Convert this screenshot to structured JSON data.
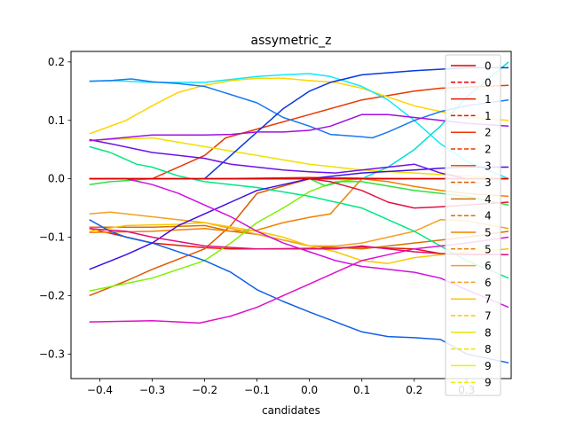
{
  "chart_data": {
    "type": "line",
    "title": "assymetric_z",
    "xlabel": "candidates",
    "ylabel": "",
    "xlim": [
      -0.455,
      0.385
    ],
    "ylim": [
      -0.342,
      0.218
    ],
    "xticks": [
      -0.4,
      -0.3,
      -0.2,
      -0.1,
      0.0,
      0.1,
      0.2,
      0.3
    ],
    "xtick_labels": [
      "−0.4",
      "−0.3",
      "−0.2",
      "−0.1",
      "0.0",
      "0.1",
      "0.2",
      "0.3"
    ],
    "yticks": [
      -0.3,
      -0.2,
      -0.1,
      0.0,
      0.1,
      0.2
    ],
    "ytick_labels": [
      "−0.3",
      "−0.2",
      "−0.1",
      "0.0",
      "0.1",
      "0.2"
    ],
    "grid": false,
    "legend_position": "right, extends below the plot",
    "legend": [
      {
        "label": "0",
        "color": "#e00000",
        "dash": "solid"
      },
      {
        "label": "0",
        "color": "#e00000",
        "dash": "dashed"
      },
      {
        "label": "1",
        "color": "#e81800",
        "dash": "solid"
      },
      {
        "label": "1",
        "color": "#e81800",
        "dash": "dashed"
      },
      {
        "label": "2",
        "color": "#ea3800",
        "dash": "solid"
      },
      {
        "label": "2",
        "color": "#ea3800",
        "dash": "dashed"
      },
      {
        "label": "3",
        "color": "#e05800",
        "dash": "solid"
      },
      {
        "label": "3",
        "color": "#e05800",
        "dash": "dashed"
      },
      {
        "label": "4",
        "color": "#d87000",
        "dash": "solid"
      },
      {
        "label": "4",
        "color": "#d87000",
        "dash": "dashed"
      },
      {
        "label": "5",
        "color": "#f08000",
        "dash": "solid"
      },
      {
        "label": "5",
        "color": "#f08000",
        "dash": "dashed"
      },
      {
        "label": "6",
        "color": "#f4a020",
        "dash": "solid"
      },
      {
        "label": "6",
        "color": "#f4a020",
        "dash": "dashed"
      },
      {
        "label": "7",
        "color": "#f8c800",
        "dash": "solid"
      },
      {
        "label": "7",
        "color": "#f8c800",
        "dash": "dashed"
      },
      {
        "label": "8",
        "color": "#f0e000",
        "dash": "solid"
      },
      {
        "label": "8",
        "color": "#f0e000",
        "dash": "dashed"
      },
      {
        "label": "9",
        "color": "#e8f000",
        "dash": "solid"
      },
      {
        "label": "9",
        "color": "#e8f000",
        "dash": "dashed"
      }
    ],
    "series": [
      {
        "color": "#e00000",
        "x": [
          -0.42,
          0.38
        ],
        "y": [
          0.0,
          0.0
        ]
      },
      {
        "color": "#e81800",
        "x": [
          -0.42,
          -0.3,
          -0.2,
          -0.1,
          0.0,
          0.1,
          0.2,
          0.3,
          0.38
        ],
        "y": [
          0.0,
          0.0,
          0.0,
          0.001,
          0.002,
          0.001,
          0.0,
          0.0,
          0.0
        ]
      },
      {
        "color": "#e81800",
        "x": [
          -0.42,
          -0.3,
          -0.2,
          -0.15,
          -0.1,
          0.0,
          0.1,
          0.2,
          0.25,
          0.38
        ],
        "y": [
          -0.085,
          -0.11,
          -0.118,
          -0.12,
          -0.12,
          -0.119,
          -0.117,
          -0.12,
          -0.128,
          -0.13
        ]
      },
      {
        "color": "#ea3800",
        "x": [
          -0.42,
          -0.3,
          -0.2,
          -0.16,
          -0.1,
          0.0,
          0.1,
          0.2,
          0.25,
          0.38
        ],
        "y": [
          0.0,
          0.0,
          0.04,
          0.07,
          0.085,
          0.11,
          0.135,
          0.15,
          0.155,
          0.16
        ]
      },
      {
        "color": "#e05800",
        "x": [
          -0.42,
          -0.35,
          -0.3,
          -0.2,
          -0.15,
          -0.1,
          0.0,
          0.1,
          0.2,
          0.3,
          0.38
        ],
        "y": [
          -0.2,
          -0.175,
          -0.155,
          -0.12,
          -0.08,
          -0.025,
          0.0,
          0.0,
          0.0,
          0.0,
          0.0
        ]
      },
      {
        "color": "#d87000",
        "x": [
          -0.42,
          -0.3,
          -0.2,
          -0.15,
          -0.1,
          0.0,
          0.1,
          0.2,
          0.3,
          0.38
        ],
        "y": [
          -0.083,
          -0.083,
          -0.08,
          -0.09,
          -0.095,
          -0.115,
          -0.12,
          -0.11,
          -0.1,
          -0.09
        ]
      },
      {
        "color": "#f08000",
        "x": [
          -0.42,
          -0.3,
          -0.2,
          -0.15,
          -0.1,
          -0.05,
          0.0,
          0.04,
          0.06,
          0.1,
          0.15,
          0.2,
          0.25,
          0.3,
          0.38
        ],
        "y": [
          -0.092,
          -0.09,
          -0.085,
          -0.09,
          -0.088,
          -0.075,
          -0.066,
          -0.06,
          -0.04,
          0.0,
          -0.005,
          -0.013,
          -0.02,
          -0.025,
          -0.03
        ]
      },
      {
        "color": "#f4a020",
        "x": [
          -0.42,
          -0.38,
          -0.3,
          -0.2,
          -0.1,
          0.0,
          0.05,
          0.1,
          0.2,
          0.25,
          0.3,
          0.38
        ],
        "y": [
          -0.06,
          -0.057,
          -0.065,
          -0.075,
          -0.095,
          -0.115,
          -0.115,
          -0.11,
          -0.09,
          -0.07,
          -0.072,
          -0.085
        ]
      },
      {
        "color": "#f8c800",
        "x": [
          -0.42,
          -0.35,
          -0.25,
          -0.2,
          -0.1,
          -0.05,
          0.0,
          0.05,
          0.1,
          0.15,
          0.2,
          0.3,
          0.38
        ],
        "y": [
          -0.09,
          -0.08,
          -0.078,
          -0.075,
          -0.09,
          -0.1,
          -0.115,
          -0.125,
          -0.14,
          -0.145,
          -0.135,
          -0.125,
          -0.12
        ]
      },
      {
        "color": "#ffd400",
        "x": [
          -0.42,
          -0.35,
          -0.3,
          -0.25,
          -0.2,
          -0.15,
          -0.1,
          -0.05,
          0.0,
          0.05,
          0.1,
          0.15,
          0.2,
          0.25,
          0.3,
          0.38
        ],
        "y": [
          0.077,
          0.1,
          0.125,
          0.148,
          0.16,
          0.168,
          0.172,
          0.172,
          0.168,
          0.165,
          0.155,
          0.14,
          0.125,
          0.115,
          0.105,
          0.1
        ]
      },
      {
        "color": "#f0e000",
        "x": [
          -0.42,
          -0.3,
          -0.2,
          -0.1,
          0.0,
          0.1,
          0.2,
          0.3,
          0.38
        ],
        "y": [
          0.066,
          0.07,
          0.055,
          0.04,
          0.025,
          0.015,
          0.01,
          0.005,
          0.0
        ]
      },
      {
        "color": "#80f000",
        "x": [
          -0.42,
          -0.3,
          -0.2,
          -0.15,
          -0.1,
          -0.05,
          0.0,
          0.05,
          0.1,
          0.15,
          0.2,
          0.25,
          0.3,
          0.38
        ],
        "y": [
          -0.192,
          -0.17,
          -0.14,
          -0.11,
          -0.075,
          -0.05,
          -0.022,
          -0.005,
          0.0,
          0.0,
          0.0,
          0.0,
          0.0,
          0.0
        ]
      },
      {
        "color": "#30e040",
        "x": [
          -0.42,
          -0.38,
          -0.3,
          -0.2,
          -0.1,
          0.0,
          0.03,
          0.06,
          0.1,
          0.2,
          0.3,
          0.38
        ],
        "y": [
          -0.01,
          -0.005,
          0.0,
          0.0,
          0.0,
          0.0,
          -0.012,
          -0.005,
          -0.005,
          -0.02,
          -0.03,
          -0.045
        ]
      },
      {
        "color": "#00e880",
        "x": [
          -0.42,
          -0.38,
          -0.33,
          -0.3,
          -0.25,
          -0.2,
          -0.1,
          0.0,
          0.1,
          0.2,
          0.3,
          0.38
        ],
        "y": [
          0.055,
          0.045,
          0.025,
          0.02,
          0.005,
          -0.005,
          -0.015,
          -0.03,
          -0.05,
          -0.09,
          -0.14,
          -0.17
        ]
      },
      {
        "color": "#00e0d0",
        "x": [
          -0.42,
          -0.3,
          -0.2,
          -0.1,
          0.0,
          0.05,
          0.1,
          0.15,
          0.2,
          0.25,
          0.3,
          0.38
        ],
        "y": [
          0.0,
          0.0,
          0.0,
          0.0,
          0.0,
          0.0,
          0.0,
          0.02,
          0.05,
          0.09,
          0.14,
          0.2
        ]
      },
      {
        "color": "#10e8ff",
        "x": [
          -0.42,
          -0.38,
          -0.3,
          -0.2,
          -0.15,
          -0.1,
          -0.05,
          0.0,
          0.04,
          0.1,
          0.15,
          0.2,
          0.25,
          0.3,
          0.38
        ],
        "y": [
          0.167,
          0.168,
          0.165,
          0.165,
          0.17,
          0.175,
          0.178,
          0.18,
          0.175,
          0.158,
          0.135,
          0.1,
          0.06,
          0.03,
          0.0
        ]
      },
      {
        "color": "#1878f0",
        "x": [
          -0.42,
          -0.38,
          -0.34,
          -0.3,
          -0.25,
          -0.2,
          -0.1,
          -0.05,
          0.0,
          0.04,
          0.1,
          0.12,
          0.15,
          0.2,
          0.25,
          0.3,
          0.38
        ],
        "y": [
          0.167,
          0.168,
          0.171,
          0.166,
          0.163,
          0.158,
          0.13,
          0.105,
          0.09,
          0.076,
          0.072,
          0.07,
          0.08,
          0.1,
          0.115,
          0.125,
          0.135
        ]
      },
      {
        "color": "#1060e8",
        "x": [
          -0.42,
          -0.38,
          -0.35,
          -0.3,
          -0.2,
          -0.15,
          -0.1,
          -0.05,
          0.0,
          0.05,
          0.1,
          0.15,
          0.2,
          0.25,
          0.3,
          0.38
        ],
        "y": [
          -0.07,
          -0.09,
          -0.1,
          -0.11,
          -0.14,
          -0.16,
          -0.19,
          -0.21,
          -0.228,
          -0.245,
          -0.262,
          -0.27,
          -0.272,
          -0.275,
          -0.3,
          -0.315
        ]
      },
      {
        "color": "#0838e0",
        "x": [
          -0.2,
          -0.15,
          -0.1,
          -0.05,
          0.0,
          0.04,
          0.1,
          0.2,
          0.3,
          0.38
        ],
        "y": [
          0.0,
          0.04,
          0.08,
          0.12,
          0.15,
          0.165,
          0.178,
          0.185,
          0.19,
          0.19
        ]
      },
      {
        "color": "#4010e0",
        "x": [
          -0.42,
          -0.35,
          -0.3,
          -0.25,
          -0.2,
          -0.15,
          -0.1,
          -0.05,
          0.0,
          0.1,
          0.2,
          0.25,
          0.3,
          0.38
        ],
        "y": [
          -0.155,
          -0.13,
          -0.11,
          -0.08,
          -0.06,
          -0.04,
          -0.02,
          -0.01,
          0.0,
          0.01,
          0.015,
          0.018,
          0.02,
          0.02
        ]
      },
      {
        "color": "#7010e8",
        "x": [
          -0.42,
          -0.38,
          -0.3,
          -0.25,
          -0.2,
          -0.15,
          -0.1,
          -0.05,
          0.0,
          0.05,
          0.1,
          0.2,
          0.25,
          0.3,
          0.38
        ],
        "y": [
          0.067,
          0.06,
          0.045,
          0.04,
          0.035,
          0.025,
          0.02,
          0.015,
          0.012,
          0.01,
          0.015,
          0.025,
          0.01,
          0.0,
          0.0
        ]
      },
      {
        "color": "#a010e0",
        "x": [
          -0.42,
          -0.3,
          -0.2,
          -0.15,
          -0.1,
          -0.05,
          0.0,
          0.04,
          0.1,
          0.15,
          0.2,
          0.25,
          0.3,
          0.38
        ],
        "y": [
          0.065,
          0.075,
          0.075,
          0.076,
          0.08,
          0.08,
          0.083,
          0.09,
          0.11,
          0.11,
          0.105,
          0.1,
          0.095,
          0.09
        ]
      },
      {
        "color": "#d010e0",
        "x": [
          -0.42,
          -0.35,
          -0.3,
          -0.25,
          -0.2,
          -0.15,
          -0.1,
          -0.05,
          0.0,
          0.05,
          0.1,
          0.15,
          0.2,
          0.25,
          0.3,
          0.38
        ],
        "y": [
          0.0,
          0.0,
          -0.01,
          -0.025,
          -0.045,
          -0.065,
          -0.09,
          -0.11,
          -0.125,
          -0.14,
          -0.15,
          -0.155,
          -0.16,
          -0.17,
          -0.19,
          -0.22
        ]
      },
      {
        "color": "#e010c8",
        "x": [
          -0.42,
          -0.3,
          -0.25,
          -0.21,
          -0.15,
          -0.1,
          -0.05,
          0.0,
          0.05,
          0.1,
          0.15,
          0.2,
          0.3,
          0.38
        ],
        "y": [
          -0.245,
          -0.243,
          -0.245,
          -0.247,
          -0.235,
          -0.22,
          -0.2,
          -0.18,
          -0.16,
          -0.14,
          -0.13,
          -0.12,
          -0.11,
          -0.1
        ]
      },
      {
        "color": "#e01080",
        "x": [
          -0.42,
          -0.35,
          -0.3,
          -0.2,
          -0.1,
          0.0,
          0.05,
          0.1,
          0.15,
          0.2,
          0.25,
          0.3,
          0.38
        ],
        "y": [
          -0.085,
          -0.09,
          -0.1,
          -0.115,
          -0.12,
          -0.12,
          -0.12,
          -0.115,
          -0.12,
          -0.125,
          -0.128,
          -0.13,
          -0.13
        ]
      },
      {
        "color": "#e01040",
        "x": [
          -0.42,
          -0.3,
          -0.2,
          -0.1,
          0.0,
          0.04,
          0.06,
          0.1,
          0.15,
          0.2,
          0.25,
          0.3,
          0.38
        ],
        "y": [
          0.0,
          0.0,
          0.0,
          0.0,
          0.0,
          -0.005,
          -0.01,
          -0.02,
          -0.04,
          -0.05,
          -0.048,
          -0.045,
          -0.04
        ]
      },
      {
        "color": "#e00000",
        "x": [
          -0.42,
          0.38
        ],
        "y": [
          0.0,
          0.0
        ]
      }
    ]
  }
}
